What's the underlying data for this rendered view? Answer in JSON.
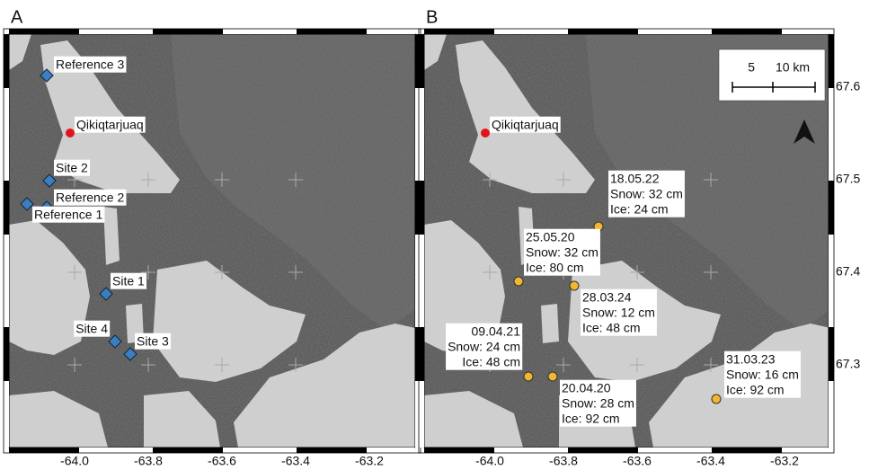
{
  "panels": [
    {
      "label": "A",
      "town": "Qikiqtarjuaq",
      "sites": [
        "Reference 3",
        "Site 2",
        "Reference 2",
        "Reference 1",
        "Site 1",
        "Site 4",
        "Site 3"
      ],
      "x_ticks": [
        {
          "value": -64.0,
          "label": "-64.0"
        },
        {
          "value": -63.8,
          "label": "-63.8"
        },
        {
          "value": -63.6,
          "label": "-63.6"
        },
        {
          "value": -63.4,
          "label": "-63.4"
        },
        {
          "value": -63.2,
          "label": "-63.2"
        }
      ]
    },
    {
      "label": "B",
      "town": "Qikiqtarjuaq",
      "observations": [
        {
          "date": "18.05.22",
          "snow": "Snow: 32 cm",
          "ice": "Ice: 24 cm"
        },
        {
          "date": "25.05.20",
          "snow": "Snow: 32 cm",
          "ice": "Ice: 80 cm"
        },
        {
          "date": "28.03.24",
          "snow": "Snow: 12 cm",
          "ice": "Ice: 48 cm"
        },
        {
          "date": "09.04.21",
          "snow": "Snow: 24 cm",
          "ice": "Ice: 48 cm"
        },
        {
          "date": "20.04.20",
          "snow": "Snow: 28 cm",
          "ice": "Ice: 92 cm"
        },
        {
          "date": "31.03.23",
          "snow": "Snow: 16 cm",
          "ice": "Ice: 92 cm"
        }
      ],
      "scale_bar": [
        "5",
        "10 km"
      ],
      "x_ticks": [
        {
          "value": -64.0,
          "label": "-64.0"
        },
        {
          "value": -63.8,
          "label": "-63.8"
        },
        {
          "value": -63.6,
          "label": "-63.6"
        },
        {
          "value": -63.4,
          "label": "-63.4"
        },
        {
          "value": -63.2,
          "label": "-63.2"
        }
      ],
      "y_ticks": [
        67.6,
        67.5,
        67.4,
        67.3
      ]
    }
  ]
}
